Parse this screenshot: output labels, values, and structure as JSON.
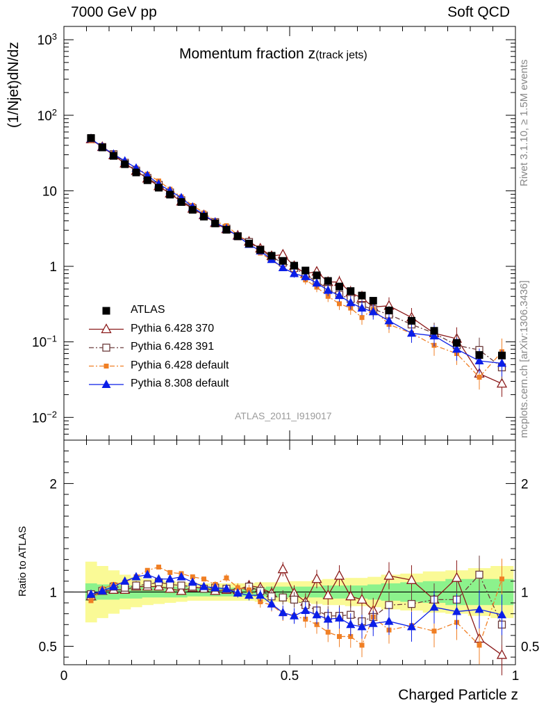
{
  "header": {
    "energy_label": "7000 GeV pp",
    "category_label": "Soft QCD"
  },
  "side_text": {
    "rivet": "Rivet 3.1.10, ≥ 1.5M events",
    "mcplots": "mcplots.cern.ch [arXiv:1306.3436]"
  },
  "chart_data": {
    "type": "scatter",
    "title_main": "Momentum fraction z",
    "title_sub": "(track jets)",
    "analysis_id": "ATLAS_2011_I919017",
    "xlabel": "Charged Particle z",
    "ylabel": "(1/Njet)dN/dz",
    "ratio_ylabel": "Ratio to ATLAS",
    "xlim": [
      0,
      1
    ],
    "ylim": [
      0.005,
      1500
    ],
    "yscale": "log",
    "ratio_ylim": [
      0.33,
      2.4
    ],
    "x_ticks": [
      {
        "value": 0,
        "label": "0"
      },
      {
        "value": 0.5,
        "label": "0.5"
      },
      {
        "value": 1,
        "label": "1"
      }
    ],
    "y_ticks": [
      {
        "value": 0.01,
        "base": "10",
        "exp": "−2"
      },
      {
        "value": 0.1,
        "base": "10",
        "exp": "−1"
      },
      {
        "value": 1,
        "base": "1",
        "exp": ""
      },
      {
        "value": 10,
        "base": "10",
        "exp": ""
      },
      {
        "value": 100,
        "base": "10",
        "exp": "2"
      },
      {
        "value": 1000,
        "base": "10",
        "exp": "3"
      }
    ],
    "ratio_ticks": [
      {
        "value": 0.5,
        "label": "0.5"
      },
      {
        "value": 1,
        "label": "1"
      },
      {
        "value": 2,
        "label": "2"
      }
    ],
    "legend": {
      "placement": "lower-left",
      "entries": [
        {
          "label": "ATLAS",
          "series": 0
        },
        {
          "label": "Pythia 6.428 370",
          "series": 1
        },
        {
          "label": "Pythia 6.428 391",
          "series": 2
        },
        {
          "label": "Pythia 6.428 default",
          "series": 3
        },
        {
          "label": "Pythia 8.308 default",
          "series": 4
        }
      ]
    },
    "x": [
      0.06,
      0.085,
      0.11,
      0.135,
      0.16,
      0.185,
      0.21,
      0.235,
      0.26,
      0.285,
      0.31,
      0.335,
      0.36,
      0.385,
      0.41,
      0.435,
      0.46,
      0.485,
      0.51,
      0.535,
      0.56,
      0.585,
      0.61,
      0.635,
      0.66,
      0.685,
      0.72,
      0.77,
      0.82,
      0.87,
      0.92,
      0.97
    ],
    "series": [
      {
        "name": "ATLAS",
        "color": "#000000",
        "marker": "square-filled",
        "line": "none",
        "values": [
          50,
          37.5,
          29,
          22.5,
          17.5,
          13.8,
          11,
          8.9,
          7.1,
          5.6,
          4.55,
          3.7,
          3.05,
          2.5,
          2.0,
          1.65,
          1.38,
          1.18,
          1.02,
          0.88,
          0.76,
          0.64,
          0.54,
          0.47,
          0.41,
          0.35,
          0.26,
          0.19,
          0.14,
          0.097,
          0.067,
          0.066
        ]
      },
      {
        "name": "Pythia 6.428 370",
        "color": "#8b1a1a",
        "marker": "triangle-open",
        "line": "solid",
        "values": [
          48,
          38,
          29.5,
          23,
          18.3,
          14.5,
          11.5,
          9.2,
          7.2,
          5.8,
          4.75,
          3.75,
          3.1,
          2.55,
          2.12,
          1.72,
          1.37,
          1.43,
          1.01,
          0.8,
          0.85,
          0.62,
          0.62,
          0.45,
          0.38,
          0.29,
          0.3,
          0.21,
          0.13,
          0.11,
          0.038,
          0.028
        ]
      },
      {
        "name": "Pythia 6.428 391",
        "color": "#6b3a3a",
        "marker": "square-open",
        "line": "dashdot",
        "values": [
          49,
          38,
          30.5,
          23.5,
          18.5,
          14.8,
          12,
          9.5,
          7.5,
          5.9,
          4.7,
          3.85,
          3.15,
          2.5,
          2.1,
          1.67,
          1.32,
          1.12,
          0.95,
          0.77,
          0.63,
          0.5,
          0.42,
          0.37,
          0.3,
          0.27,
          0.23,
          0.17,
          0.13,
          0.09,
          0.078,
          0.046
        ]
      },
      {
        "name": "Pythia 6.428 default",
        "color": "#f07f24",
        "marker": "square-filled-small",
        "line": "dashdot",
        "values": [
          46,
          38.5,
          31,
          24.5,
          20,
          16.6,
          13.5,
          10.5,
          8.3,
          6.4,
          5.1,
          3.95,
          3.45,
          2.6,
          2.03,
          1.5,
          1.21,
          0.95,
          0.8,
          0.66,
          0.53,
          0.4,
          0.32,
          0.28,
          0.21,
          0.27,
          0.17,
          0.13,
          0.09,
          0.07,
          0.034,
          0.074
        ]
      },
      {
        "name": "Pythia 8.308 default",
        "color": "#0a1ee8",
        "marker": "triangle-filled",
        "line": "solid",
        "values": [
          49,
          38,
          30.5,
          24.8,
          20,
          16,
          12.3,
          10,
          8.1,
          6.1,
          4.8,
          3.85,
          3.15,
          2.5,
          1.95,
          1.6,
          1.23,
          0.96,
          0.8,
          0.73,
          0.6,
          0.48,
          0.41,
          0.33,
          0.28,
          0.25,
          0.19,
          0.13,
          0.12,
          0.08,
          0.056,
          0.052
        ]
      }
    ],
    "ratio_series": [
      {
        "values": [
          0.96,
          1.01,
          1.02,
          1.02,
          1.05,
          1.05,
          1.05,
          1.03,
          1.01,
          1.04,
          1.04,
          1.01,
          1.02,
          1.02,
          1.06,
          1.04,
          0.99,
          1.21,
          0.99,
          0.91,
          1.12,
          0.97,
          1.15,
          0.96,
          0.93,
          0.83,
          1.15,
          1.11,
          0.93,
          1.13,
          0.57,
          0.42
        ]
      },
      {
        "values": [
          0.98,
          1.01,
          1.05,
          1.04,
          1.06,
          1.07,
          1.09,
          1.07,
          1.06,
          1.05,
          1.03,
          1.04,
          1.03,
          1.0,
          1.05,
          1.01,
          0.96,
          0.95,
          0.93,
          0.88,
          0.83,
          0.78,
          0.78,
          0.79,
          0.73,
          0.77,
          0.88,
          0.89,
          0.93,
          0.93,
          1.16,
          0.7
        ]
      },
      {
        "values": [
          0.92,
          1.03,
          1.07,
          1.09,
          1.14,
          1.2,
          1.23,
          1.18,
          1.17,
          1.14,
          1.12,
          1.07,
          1.13,
          1.04,
          1.02,
          0.91,
          0.88,
          0.8,
          0.78,
          0.75,
          0.7,
          0.63,
          0.59,
          0.59,
          0.51,
          0.77,
          0.65,
          0.69,
          0.64,
          0.72,
          0.51,
          1.12
        ]
      },
      {
        "values": [
          0.98,
          1.01,
          1.05,
          1.1,
          1.14,
          1.16,
          1.12,
          1.12,
          1.14,
          1.09,
          1.05,
          1.04,
          1.03,
          0.99,
          0.97,
          0.97,
          0.89,
          0.81,
          0.78,
          0.83,
          0.79,
          0.75,
          0.76,
          0.7,
          0.68,
          0.71,
          0.73,
          0.68,
          0.86,
          0.82,
          0.84,
          0.79
        ]
      }
    ],
    "uncertainty_band": {
      "stat_color": "#8cf28c",
      "total_color": "#fafa96",
      "stat": [
        0.08,
        0.07,
        0.07,
        0.06,
        0.06,
        0.05,
        0.05,
        0.05,
        0.05,
        0.04,
        0.04,
        0.04,
        0.04,
        0.04,
        0.04,
        0.04,
        0.05,
        0.05,
        0.05,
        0.05,
        0.05,
        0.06,
        0.06,
        0.06,
        0.06,
        0.07,
        0.08,
        0.09,
        0.1,
        0.12,
        0.12,
        0.12
      ],
      "total": [
        0.28,
        0.24,
        0.2,
        0.16,
        0.14,
        0.12,
        0.11,
        0.1,
        0.09,
        0.08,
        0.08,
        0.08,
        0.08,
        0.08,
        0.08,
        0.09,
        0.09,
        0.09,
        0.1,
        0.1,
        0.11,
        0.12,
        0.12,
        0.13,
        0.13,
        0.14,
        0.16,
        0.17,
        0.19,
        0.2,
        0.22,
        0.24
      ]
    }
  }
}
